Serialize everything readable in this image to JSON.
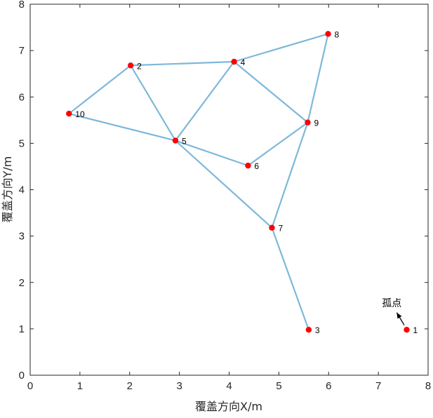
{
  "chart_data": {
    "type": "scatter",
    "title": "",
    "xlabel": "覆盖方向X/m",
    "ylabel": "覆盖方向Y/m",
    "xlim": [
      0,
      8
    ],
    "ylim": [
      0,
      8
    ],
    "xticks": [
      "0",
      "1",
      "2",
      "3",
      "4",
      "5",
      "6",
      "7",
      "8"
    ],
    "yticks": [
      "0",
      "1",
      "2",
      "3",
      "4",
      "5",
      "6",
      "7",
      "8"
    ],
    "grid": false,
    "edge_color": "#7eb8da",
    "node_color": "#ff0000",
    "nodes": [
      {
        "id": "1",
        "x": 7.57,
        "y": 0.98
      },
      {
        "id": "2",
        "x": 2.02,
        "y": 6.68
      },
      {
        "id": "3",
        "x": 5.6,
        "y": 0.98
      },
      {
        "id": "4",
        "x": 4.1,
        "y": 6.76
      },
      {
        "id": "5",
        "x": 2.92,
        "y": 5.06
      },
      {
        "id": "6",
        "x": 4.38,
        "y": 4.52
      },
      {
        "id": "7",
        "x": 4.86,
        "y": 3.18
      },
      {
        "id": "8",
        "x": 5.99,
        "y": 7.36
      },
      {
        "id": "9",
        "x": 5.58,
        "y": 5.45
      },
      {
        "id": "10",
        "x": 0.78,
        "y": 5.64
      }
    ],
    "edges": [
      [
        "10",
        "2"
      ],
      [
        "2",
        "4"
      ],
      [
        "4",
        "8"
      ],
      [
        "8",
        "9"
      ],
      [
        "9",
        "4"
      ],
      [
        "2",
        "5"
      ],
      [
        "10",
        "5"
      ],
      [
        "4",
        "5"
      ],
      [
        "5",
        "6"
      ],
      [
        "6",
        "9"
      ],
      [
        "5",
        "7"
      ],
      [
        "9",
        "7"
      ],
      [
        "7",
        "3"
      ]
    ],
    "annotation": {
      "text": "孤点",
      "target": "1",
      "text_x": 7.27,
      "text_y": 1.56,
      "arrow_from": [
        7.37,
        1.35
      ],
      "arrow_to": [
        7.52,
        1.08
      ]
    }
  }
}
